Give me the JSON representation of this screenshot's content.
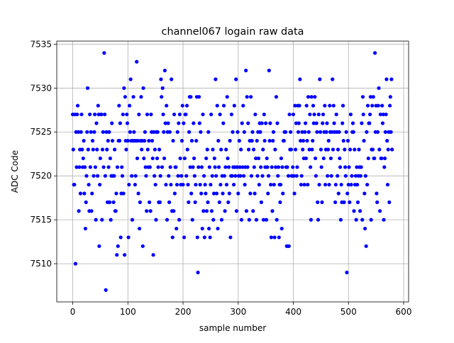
{
  "chart_data": {
    "type": "scatter",
    "title": "channel067 logain raw data",
    "xlabel": "sample number",
    "ylabel": "ADC Code",
    "color": "#0000ff",
    "grid": true,
    "xlim": [
      -29,
      609
    ],
    "ylim": [
      7505.65,
      7535.35
    ],
    "xticks": [
      0,
      100,
      200,
      300,
      400,
      500,
      600
    ],
    "yticks": [
      7510,
      7515,
      7520,
      7525,
      7530,
      7535
    ],
    "x": [
      0,
      1,
      2,
      3,
      4,
      5,
      6,
      7,
      8,
      9,
      10,
      11,
      12,
      13,
      14,
      15,
      16,
      17,
      18,
      19,
      20,
      21,
      22,
      23,
      24,
      25,
      26,
      27,
      28,
      29,
      30,
      31,
      32,
      33,
      34,
      35,
      36,
      37,
      38,
      39,
      40,
      41,
      42,
      43,
      44,
      45,
      46,
      47,
      48,
      49,
      50,
      51,
      52,
      53,
      54,
      55,
      56,
      57,
      58,
      59,
      60,
      61,
      62,
      63,
      64,
      65,
      66,
      67,
      68,
      69,
      70,
      71,
      72,
      73,
      74,
      75,
      76,
      77,
      78,
      79,
      80,
      81,
      82,
      83,
      84,
      85,
      86,
      87,
      88,
      89,
      90,
      91,
      92,
      93,
      94,
      95,
      96,
      97,
      98,
      99,
      100,
      101,
      102,
      103,
      104,
      105,
      106,
      107,
      108,
      109,
      110,
      111,
      112,
      113,
      114,
      115,
      116,
      117,
      118,
      119,
      120,
      121,
      122,
      123,
      124,
      125,
      126,
      127,
      128,
      129,
      130,
      131,
      132,
      133,
      134,
      135,
      136,
      137,
      138,
      139,
      140,
      141,
      142,
      143,
      144,
      145,
      146,
      147,
      148,
      149,
      150,
      151,
      152,
      153,
      154,
      155,
      156,
      157,
      158,
      159,
      160,
      161,
      162,
      163,
      164,
      165,
      166,
      167,
      168,
      169,
      170,
      171,
      172,
      173,
      174,
      175,
      176,
      177,
      178,
      179,
      180,
      181,
      182,
      183,
      184,
      185,
      186,
      187,
      188,
      189,
      190,
      191,
      192,
      193,
      194,
      195,
      196,
      197,
      198,
      199,
      200,
      201,
      202,
      203,
      204,
      205,
      206,
      207,
      208,
      209,
      210,
      211,
      212,
      213,
      214,
      215,
      216,
      217,
      218,
      219,
      220,
      221,
      222,
      223,
      224,
      225,
      226,
      227,
      228,
      229,
      230,
      231,
      232,
      233,
      234,
      235,
      236,
      237,
      238,
      239,
      240,
      241,
      242,
      243,
      244,
      245,
      246,
      247,
      248,
      249,
      250,
      251,
      252,
      253,
      254,
      255,
      256,
      257,
      258,
      259,
      260,
      261,
      262,
      263,
      264,
      265,
      266,
      267,
      268,
      269,
      270,
      271,
      272,
      273,
      274,
      275,
      276,
      277,
      278,
      279,
      280,
      281,
      282,
      283,
      284,
      285,
      286,
      287,
      288,
      289,
      290,
      291,
      292,
      293,
      294,
      295,
      296,
      297,
      298,
      299,
      300,
      301,
      302,
      303,
      304,
      305,
      306,
      307,
      308,
      309,
      310,
      311,
      312,
      313,
      314,
      315,
      316,
      317,
      318,
      319,
      320,
      321,
      322,
      323,
      324,
      325,
      326,
      327,
      328,
      329,
      330,
      331,
      332,
      333,
      334,
      335,
      336,
      337,
      338,
      339,
      340,
      341,
      342,
      343,
      344,
      345,
      346,
      347,
      348,
      349,
      350,
      351,
      352,
      353,
      354,
      355,
      356,
      357,
      358,
      359,
      360,
      361,
      362,
      363,
      364,
      365,
      366,
      367,
      368,
      369,
      370,
      371,
      372,
      373,
      374,
      375,
      376,
      377,
      378,
      379,
      380,
      381,
      382,
      383,
      384,
      385,
      386,
      387,
      388,
      389,
      390,
      391,
      392,
      393,
      394,
      395,
      396,
      397,
      398,
      399,
      400,
      401,
      402,
      403,
      404,
      405,
      406,
      407,
      408,
      409,
      410,
      411,
      412,
      413,
      414,
      415,
      416,
      417,
      418,
      419,
      420,
      421,
      422,
      423,
      424,
      425,
      426,
      427,
      428,
      429,
      430,
      431,
      432,
      433,
      434,
      435,
      436,
      437,
      438,
      439,
      440,
      441,
      442,
      443,
      444,
      445,
      446,
      447,
      448,
      449,
      450,
      451,
      452,
      453,
      454,
      455,
      456,
      457,
      458,
      459,
      460,
      461,
      462,
      463,
      464,
      465,
      466,
      467,
      468,
      469,
      470,
      471,
      472,
      473,
      474,
      475,
      476,
      477,
      478,
      479,
      480,
      481,
      482,
      483,
      484,
      485,
      486,
      487,
      488,
      489,
      490,
      491,
      492,
      493,
      494,
      495,
      496,
      497,
      498,
      499,
      500,
      501,
      502,
      503,
      504,
      505,
      506,
      507,
      508,
      509,
      510,
      511,
      512,
      513,
      514,
      515,
      516,
      517,
      518,
      519,
      520,
      521,
      522,
      523,
      524,
      525,
      526,
      527,
      528,
      529,
      530,
      531,
      532,
      533,
      534,
      535,
      536,
      537,
      538,
      539,
      540,
      541,
      542,
      543,
      544,
      545,
      546,
      547,
      548,
      549,
      550,
      551,
      552,
      553,
      554,
      555,
      556,
      557,
      558,
      559,
      560,
      561,
      562,
      563,
      564,
      565,
      566,
      567,
      568,
      569,
      570,
      571,
      572,
      573,
      574,
      575,
      576,
      577,
      578,
      579
    ],
    "values": [
      7527,
      7523,
      7519,
      7519,
      7527,
      7510,
      7525,
      7521,
      7527,
      7528,
      7525,
      7516,
      7521,
      7523,
      7518,
      7525,
      7527,
      7523,
      7521,
      7522,
      7524,
      7518,
      7521,
      7514,
      7517,
      7520,
      7525,
      7530,
      7523,
      7519,
      7516,
      7527,
      7521,
      7525,
      7516,
      7518,
      7524,
      7523,
      7520,
      7525,
      7527,
      7521,
      7515,
      7526,
      7523,
      7520,
      7528,
      7527,
      7512,
      7519,
      7522,
      7527,
      7527,
      7515,
      7523,
      7525,
      7521,
      7534,
      7527,
      7520,
      7507,
      7525,
      7523,
      7517,
      7524,
      7521,
      7525,
      7517,
      7522,
      7515,
      7520,
      7526,
      7524,
      7520,
      7517,
      7520,
      7523,
      7516,
      7516,
      7518,
      7511,
      7521,
      7512,
      7524,
      7528,
      7524,
      7526,
      7513,
      7518,
      7521,
      7520,
      7527,
      7518,
      7530,
      7511,
      7529,
      7524,
      7523,
      7527,
      7526,
      7524,
      7513,
      7519,
      7528,
      7525,
      7531,
      7524,
      7520,
      7515,
      7524,
      7529,
      7525,
      7524,
      7519,
      7520,
      7524,
      7533,
      7522,
      7524,
      7518,
      7527,
      7514,
      7517,
      7524,
      7529,
      7523,
      7524,
      7512,
      7530,
      7522,
      7524,
      7525,
      7521,
      7520,
      7516,
      7527,
      7523,
      7521,
      7524,
      7517,
      7521,
      7516,
      7527,
      7525,
      7524,
      7522,
      7511,
      7525,
      7520,
      7523,
      7519,
      7515,
      7525,
      7522,
      7525,
      7521,
      7517,
      7523,
      7517,
      7520,
      7531,
      7529,
      7521,
      7530,
      7527,
      7525,
      7522,
      7532,
      7526,
      7519,
      7528,
      7515,
      7525,
      7526,
      7520,
      7517,
      7525,
      7521,
      7519,
      7531,
      7516,
      7513,
      7524,
      7516,
      7527,
      7518,
      7521,
      7521,
      7514,
      7519,
      7525,
      7520,
      7526,
      7515,
      7527,
      7522,
      7519,
      7520,
      7524,
      7528,
      7519,
      7526,
      7513,
      7522,
      7527,
      7527,
      7520,
      7528,
      7523,
      7519,
      7517,
      7525,
      7529,
      7521,
      7529,
      7518,
      7524,
      7515,
      7521,
      7526,
      7522,
      7520,
      7517,
      7519,
      7524,
      7529,
      7513,
      7509,
      7521,
      7529,
      7526,
      7519,
      7525,
      7518,
      7521,
      7514,
      7527,
      7516,
      7520,
      7513,
      7519,
      7518,
      7522,
      7516,
      7523,
      7517,
      7525,
      7514,
      7521,
      7513,
      7519,
      7527,
      7516,
      7520,
      7523,
      7515,
      7518,
      7522,
      7521,
      7531,
      7520,
      7518,
      7528,
      7514,
      7524,
      7521,
      7517,
      7527,
      7519,
      7523,
      7515,
      7520,
      7518,
      7526,
      7528,
      7520,
      7516,
      7521,
      7523,
      7519,
      7529,
      7522,
      7517,
      7521,
      7518,
      7524,
      7513,
      7520,
      7527,
      7520,
      7525,
      7521,
      7519,
      7528,
      7521,
      7520,
      7531,
      7516,
      7521,
      7525,
      7518,
      7520,
      7524,
      7521,
      7520,
      7523,
      7515,
      7526,
      7521,
      7528,
      7520,
      7525,
      7519,
      7521,
      7532,
      7516,
      7529,
      7521,
      7526,
      7523,
      7515,
      7524,
      7518,
      7529,
      7520,
      7524,
      7525,
      7516,
      7523,
      7521,
      7518,
      7527,
      7522,
      7515,
      7524,
      7520,
      7525,
      7522,
      7519,
      7526,
      7525,
      7521,
      7517,
      7526,
      7520,
      7523,
      7515,
      7527,
      7524,
      7521,
      7526,
      7515,
      7522,
      7521,
      7518,
      7520,
      7532,
      7524,
      7526,
      7519,
      7513,
      7521,
      7516,
      7524,
      7525,
      7519,
      7513,
      7523,
      7521,
      7529,
      7515,
      7526,
      7520,
      7521,
      7513,
      7519,
      7517,
      7519,
      7522,
      7514,
      7521,
      7518,
      7524,
      7524,
      7525,
      7525,
      7525,
      7521,
      7512,
      7521,
      7512,
      7520,
      7512,
      7527,
      7523,
      7525,
      7523,
      7520,
      7520,
      7521,
      7527,
      7520,
      7518,
      7528,
      7523,
      7526,
      7520,
      7521,
      7528,
      7525,
      7526,
      7528,
      7531,
      7524,
      7519,
      7520,
      7525,
      7523,
      7524,
      7522,
      7519,
      7525,
      7526,
      7522,
      7528,
      7524,
      7519,
      7529,
      7525,
      7523,
      7527,
      7521,
      7515,
      7529,
      7523,
      7524,
      7528,
      7526,
      7527,
      7529,
      7522,
      7520,
      7526,
      7525,
      7517,
      7515,
      7527,
      7519,
      7531,
      7525,
      7523,
      7521,
      7517,
      7526,
      7527,
      7522,
      7525,
      7528,
      7519,
      7523,
      7525,
      7526,
      7520,
      7523,
      7524,
      7519,
      7528,
      7525,
      7522,
      7520,
      7525,
      7531,
      7523,
      7528,
      7526,
      7525,
      7517,
      7519,
      7527,
      7525,
      7520,
      7523,
      7518,
      7525,
      7522,
      7521,
      7515,
      7519,
      7517,
      7526,
      7528,
      7524,
      7517,
      7523,
      7521,
      7520,
      7525,
      7509,
      7518,
      7524,
      7519,
      7521,
      7517,
      7523,
      7527,
      7519,
      7520,
      7525,
      7526,
      7525,
      7516,
      7523,
      7519,
      7520,
      7515,
      7521,
      7519,
      7517,
      7520,
      7523,
      7521,
      7516,
      7520,
      7521,
      7526,
      7515,
      7529,
      7527,
      7524,
      7518,
      7514,
      7520,
      7512,
      7525,
      7519,
      7528,
      7522,
      7526,
      7526,
      7527,
      7529,
      7515,
      7523,
      7528,
      7523,
      7529,
      7522,
      7522,
      7534,
      7525,
      7528,
      7518,
      7517,
      7525,
      7528,
      7530,
      7523,
      7516,
      7527,
      7522,
      7522,
      7528,
      7526,
      7527,
      7515,
      7521,
      7522,
      7525,
      7527,
      7531,
      7524,
      7519,
      7523,
      7525,
      7517,
      7528,
      7529,
      7525,
      7531,
      7523
    ]
  }
}
